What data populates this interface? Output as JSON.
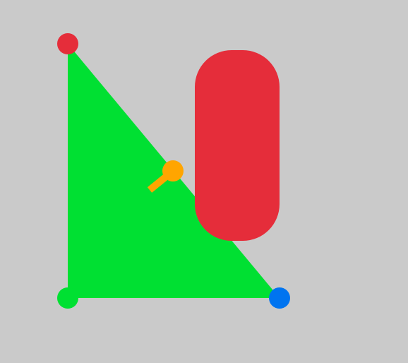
{
  "colors": {
    "background": "#cacaca",
    "triangle": "#00e032",
    "vertex_top": "#e52d3a",
    "vertex_bottom_left": "#00e032",
    "vertex_bottom_right": "#0074f0",
    "rect": "#e52d3a",
    "handle": "#ffa500"
  },
  "icons": {
    "vertex_top": "red-circle",
    "vertex_bottom_left": "green-circle",
    "vertex_bottom_right": "blue-circle",
    "rect": "red-rounded-rectangle",
    "handle": "orange-rotation-handle"
  }
}
